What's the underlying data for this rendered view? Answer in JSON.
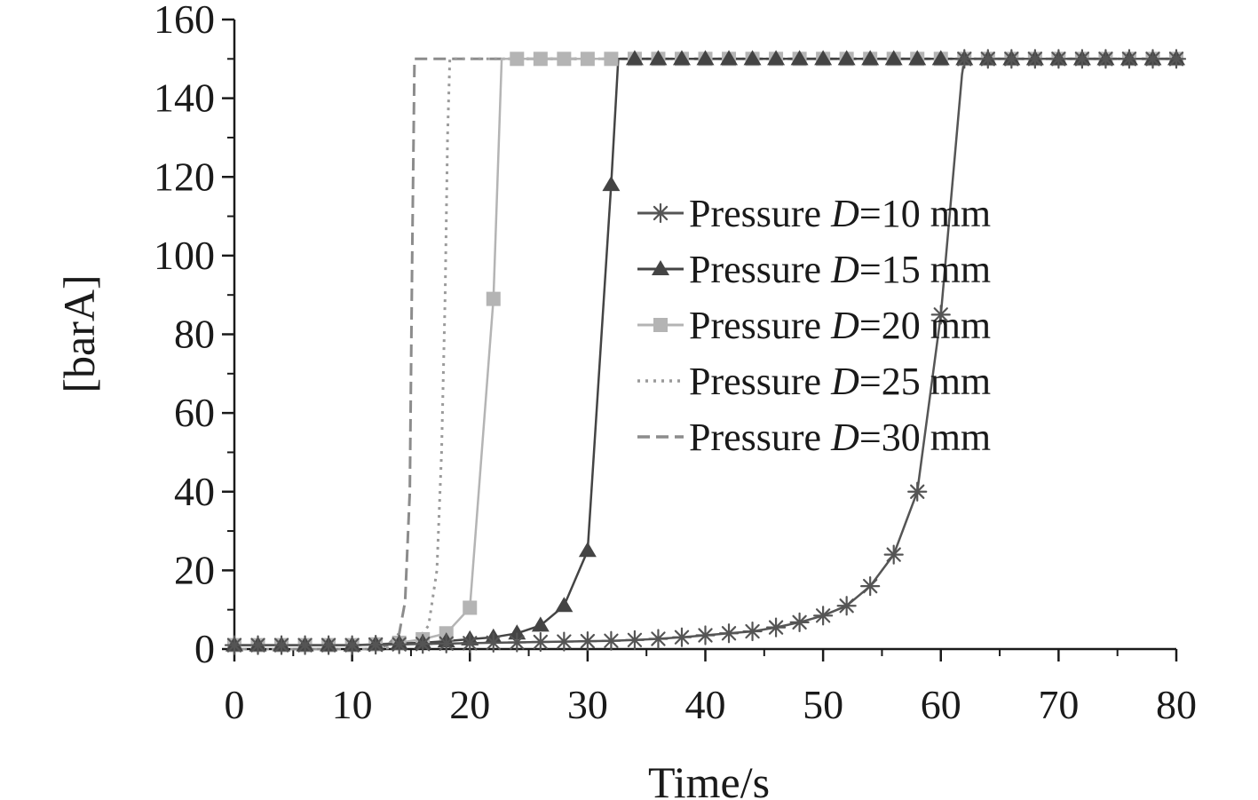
{
  "chart_data": {
    "type": "line",
    "title": "",
    "xlabel": "Time/s",
    "ylabel": "[barA]",
    "xlim": [
      0,
      80
    ],
    "ylim": [
      0,
      160
    ],
    "x_ticks": [
      "0",
      "10",
      "20",
      "30",
      "40",
      "50",
      "60",
      "70",
      "80"
    ],
    "y_ticks": [
      "0",
      "20",
      "40",
      "60",
      "80",
      "100",
      "120",
      "140",
      "160"
    ],
    "legend": {
      "placement": "center-right",
      "entries": [
        {
          "prefix": "Pressure ",
          "var": "D",
          "suffix": "=10 mm"
        },
        {
          "prefix": "Pressure ",
          "var": "D",
          "suffix": "=15 mm"
        },
        {
          "prefix": "Pressure ",
          "var": "D",
          "suffix": "=20 mm"
        },
        {
          "prefix": "Pressure ",
          "var": "D",
          "suffix": "=25 mm"
        },
        {
          "prefix": "Pressure ",
          "var": "D",
          "suffix": "=30 mm"
        }
      ]
    },
    "series": [
      {
        "name": "Pressure D=10 mm",
        "color": "#555555",
        "line_style": "solid",
        "marker": "asterisk",
        "x": [
          0,
          2,
          4,
          6,
          8,
          10,
          12,
          14,
          16,
          18,
          20,
          22,
          24,
          26,
          28,
          30,
          32,
          34,
          36,
          38,
          40,
          42,
          44,
          46,
          48,
          50,
          52,
          54,
          56,
          58,
          60,
          61.8,
          62,
          64,
          66,
          68,
          70,
          72,
          74,
          76,
          78,
          80
        ],
        "y": [
          1,
          1,
          1,
          1,
          1,
          1,
          1.1,
          1.2,
          1.3,
          1.4,
          1.5,
          1.6,
          1.7,
          1.8,
          1.9,
          2.0,
          2.1,
          2.3,
          2.6,
          3.0,
          3.5,
          4.0,
          4.5,
          5.5,
          6.8,
          8.5,
          11,
          16,
          24,
          40,
          85,
          146,
          150,
          150,
          150,
          150,
          150,
          150,
          150,
          150,
          150,
          150
        ]
      },
      {
        "name": "Pressure D=15 mm",
        "color": "#444444",
        "line_style": "solid",
        "marker": "triangle",
        "x": [
          0,
          2,
          4,
          6,
          8,
          10,
          12,
          14,
          16,
          18,
          20,
          22,
          24,
          26,
          28,
          30,
          32,
          32.6,
          34,
          36,
          38,
          40,
          42,
          44,
          46,
          48,
          50,
          52,
          54,
          56,
          58,
          60,
          62,
          64,
          66,
          68,
          70,
          72,
          74,
          76,
          78,
          80
        ],
        "y": [
          1,
          1,
          1,
          1,
          1,
          1,
          1.2,
          1.4,
          1.6,
          2.0,
          2.5,
          3.0,
          4.0,
          6.0,
          11,
          25,
          118,
          150,
          150,
          150,
          150,
          150,
          150,
          150,
          150,
          150,
          150,
          150,
          150,
          150,
          150,
          150,
          150,
          150,
          150,
          150,
          150,
          150,
          150,
          150,
          150,
          150
        ]
      },
      {
        "name": "Pressure D=20 mm",
        "color": "#b4b4b4",
        "line_style": "solid",
        "marker": "square",
        "x": [
          0,
          2,
          4,
          6,
          8,
          10,
          12,
          14,
          16,
          18,
          20,
          22,
          22.7,
          24,
          26,
          28,
          30,
          32,
          34,
          36,
          38,
          40,
          42,
          44,
          46,
          48,
          50,
          52,
          54,
          56,
          58,
          60,
          62,
          64,
          66,
          68,
          70,
          72,
          74,
          76,
          78,
          80
        ],
        "y": [
          1,
          1,
          1,
          1,
          1,
          1,
          1.2,
          1.6,
          2.5,
          4.0,
          10.5,
          89,
          150,
          150,
          150,
          150,
          150,
          150,
          150,
          150,
          150,
          150,
          150,
          150,
          150,
          150,
          150,
          150,
          150,
          150,
          150,
          150,
          150,
          150,
          150,
          150,
          150,
          150,
          150,
          150,
          150,
          150
        ]
      },
      {
        "name": "Pressure D=25 mm",
        "color": "#9a9a9a",
        "line_style": "dotted",
        "marker": "none",
        "x": [
          0,
          12,
          14,
          15.5,
          16.5,
          17.2,
          17.6,
          17.9,
          18.1,
          18.3,
          80
        ],
        "y": [
          0,
          0,
          0.5,
          2,
          6,
          20,
          50,
          90,
          130,
          150,
          150
        ]
      },
      {
        "name": "Pressure D=30 mm",
        "color": "#8c8c8c",
        "line_style": "dashed",
        "marker": "none",
        "x": [
          0,
          12,
          13,
          14,
          14.5,
          14.9,
          15.1,
          15.3,
          80
        ],
        "y": [
          0,
          0,
          1,
          4,
          12,
          40,
          100,
          150,
          150
        ]
      }
    ]
  }
}
